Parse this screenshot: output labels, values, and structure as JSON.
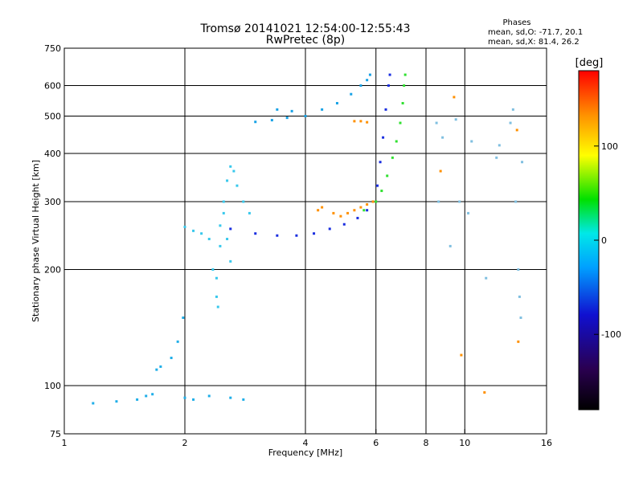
{
  "chart_data": {
    "type": "scatter",
    "title": "Tromsø 20141021 12:54:00-12:55:43",
    "subtitle": "RwPretec (8p)",
    "stats": {
      "heading": "Phases",
      "line1": "mean, sd,O: -71.7, 20.1",
      "line2": "mean, sd,X:  81.4, 26.2"
    },
    "xlabel": "Frequency [MHz]",
    "ylabel": "Stationary phase Virtual Height [km]",
    "x_scale": "log",
    "y_scale": "log",
    "xlim": [
      1,
      16
    ],
    "ylim": [
      75,
      750
    ],
    "x_ticks": [
      1,
      2,
      4,
      6,
      8,
      10,
      16
    ],
    "x_tick_labels": [
      "1",
      "2",
      "4",
      "6",
      "8",
      "10",
      "16"
    ],
    "y_ticks": [
      75,
      100,
      200,
      300,
      400,
      500,
      600,
      750
    ],
    "y_tick_labels": [
      "75",
      "100",
      "200",
      "300",
      "400",
      "500",
      "600",
      "750"
    ],
    "grid": true,
    "colorbar": {
      "label": "[deg]",
      "range": [
        -180,
        180
      ],
      "ticks": [
        -100,
        0,
        100
      ],
      "tick_labels": [
        "-100",
        "0",
        "100"
      ],
      "colors": [
        "#000000",
        "#2a0050",
        "#1010d0",
        "#00a0ff",
        "#00e8e8",
        "#00e000",
        "#ffff00",
        "#ff9000",
        "#ff0000"
      ]
    },
    "series": [
      {
        "trace": "e_region",
        "color": "#1faee8",
        "points": [
          [
            1.18,
            90
          ],
          [
            1.35,
            91
          ],
          [
            1.52,
            92
          ],
          [
            1.6,
            94
          ],
          [
            1.66,
            95
          ],
          [
            1.7,
            110
          ],
          [
            1.74,
            112
          ],
          [
            1.85,
            118
          ],
          [
            1.92,
            130
          ],
          [
            1.98,
            150
          ],
          [
            2.0,
            93
          ],
          [
            2.1,
            92
          ],
          [
            2.3,
            94
          ],
          [
            2.6,
            93
          ],
          [
            2.8,
            92
          ]
        ]
      },
      {
        "trace": "f_region_spread",
        "color": "#38c8ec",
        "points": [
          [
            2.0,
            258
          ],
          [
            2.1,
            252
          ],
          [
            2.2,
            248
          ],
          [
            2.3,
            240
          ],
          [
            2.35,
            200
          ],
          [
            2.4,
            170
          ],
          [
            2.42,
            160
          ],
          [
            2.45,
            230
          ],
          [
            2.5,
            300
          ],
          [
            2.55,
            340
          ],
          [
            2.6,
            370
          ],
          [
            2.65,
            360
          ],
          [
            2.7,
            330
          ],
          [
            2.8,
            300
          ],
          [
            2.9,
            280
          ],
          [
            2.45,
            260
          ],
          [
            2.5,
            280
          ],
          [
            2.55,
            240
          ],
          [
            2.6,
            210
          ],
          [
            2.4,
            190
          ]
        ]
      },
      {
        "trace": "f_o_mode",
        "color": "#1a2ee0",
        "points": [
          [
            2.6,
            255
          ],
          [
            3.0,
            248
          ],
          [
            3.4,
            245
          ],
          [
            3.8,
            245
          ],
          [
            4.2,
            248
          ],
          [
            4.6,
            255
          ],
          [
            5.0,
            262
          ],
          [
            5.4,
            272
          ],
          [
            5.7,
            285
          ],
          [
            5.9,
            300
          ],
          [
            6.05,
            330
          ],
          [
            6.15,
            380
          ],
          [
            6.25,
            440
          ],
          [
            6.35,
            520
          ],
          [
            6.45,
            600
          ],
          [
            6.5,
            640
          ]
        ]
      },
      {
        "trace": "f_x_mode",
        "color": "#30e030",
        "points": [
          [
            5.6,
            285
          ],
          [
            6.0,
            300
          ],
          [
            6.2,
            320
          ],
          [
            6.4,
            350
          ],
          [
            6.6,
            390
          ],
          [
            6.75,
            430
          ],
          [
            6.9,
            480
          ],
          [
            7.0,
            540
          ],
          [
            7.05,
            600
          ],
          [
            7.1,
            640
          ]
        ]
      },
      {
        "trace": "f_orange_segment",
        "color": "#ff9000",
        "points": [
          [
            4.7,
            280
          ],
          [
            4.9,
            275
          ],
          [
            5.1,
            280
          ],
          [
            5.3,
            285
          ],
          [
            5.5,
            290
          ],
          [
            5.7,
            295
          ],
          [
            5.9,
            300
          ],
          [
            4.3,
            285
          ],
          [
            4.4,
            290
          ],
          [
            5.3,
            485
          ],
          [
            5.5,
            485
          ],
          [
            5.7,
            482
          ]
        ]
      },
      {
        "trace": "multihop_echo",
        "color": "#18a2e6",
        "points": [
          [
            3.0,
            483
          ],
          [
            3.3,
            488
          ],
          [
            3.6,
            495
          ],
          [
            4.0,
            500
          ],
          [
            4.4,
            520
          ],
          [
            4.8,
            540
          ],
          [
            5.2,
            570
          ],
          [
            5.5,
            600
          ],
          [
            5.7,
            620
          ],
          [
            5.8,
            640
          ],
          [
            3.4,
            520
          ],
          [
            3.7,
            515
          ]
        ]
      },
      {
        "trace": "scattered",
        "color": "#7fbfe0",
        "points": [
          [
            8.5,
            480
          ],
          [
            8.6,
            300
          ],
          [
            8.8,
            440
          ],
          [
            9.2,
            230
          ],
          [
            9.5,
            490
          ],
          [
            9.7,
            300
          ],
          [
            10.2,
            280
          ],
          [
            10.4,
            430
          ],
          [
            11.3,
            190
          ],
          [
            12.0,
            390
          ],
          [
            12.2,
            420
          ],
          [
            13.0,
            480
          ],
          [
            13.2,
            520
          ],
          [
            13.4,
            300
          ],
          [
            13.6,
            200
          ],
          [
            13.7,
            170
          ],
          [
            13.8,
            150
          ],
          [
            13.9,
            380
          ]
        ]
      },
      {
        "trace": "scattered_warm",
        "color": "#ff9000",
        "points": [
          [
            9.4,
            560
          ],
          [
            9.8,
            120
          ],
          [
            11.2,
            96
          ],
          [
            13.5,
            460
          ],
          [
            13.6,
            130
          ],
          [
            8.7,
            360
          ]
        ]
      }
    ]
  }
}
